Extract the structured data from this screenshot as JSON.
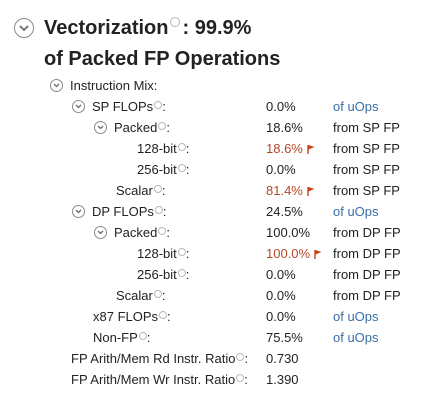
{
  "header": {
    "title": "Vectorization",
    "value": ": 99.9%",
    "subtitle": "of Packed FP Operations"
  },
  "colors": {
    "link": "#3a6ea5",
    "warn": "#b5472b",
    "flag": "#c8441c"
  },
  "icons": {
    "expand_toggle": "chevron-down-in-circle-icon",
    "help": "help-circle-icon",
    "warning": "flag-icon"
  },
  "rows": [
    {
      "label": "Instruction Mix:",
      "value": "",
      "unit": ""
    },
    {
      "label": "SP FLOPs",
      "value": "0.0%",
      "unit": "of uOps"
    },
    {
      "label": "Packed",
      "value": "18.6%",
      "unit": "from SP FP"
    },
    {
      "label": "128-bit",
      "value": "18.6%",
      "unit": "from SP FP"
    },
    {
      "label": "256-bit",
      "value": "0.0%",
      "unit": "from SP FP"
    },
    {
      "label": "Scalar",
      "value": "81.4%",
      "unit": "from SP FP"
    },
    {
      "label": "DP FLOPs",
      "value": "24.5%",
      "unit": "of uOps"
    },
    {
      "label": "Packed",
      "value": "100.0%",
      "unit": "from DP FP"
    },
    {
      "label": "128-bit",
      "value": "100.0%",
      "unit": "from DP FP"
    },
    {
      "label": "256-bit",
      "value": "0.0%",
      "unit": "from DP FP"
    },
    {
      "label": "Scalar",
      "value": "0.0%",
      "unit": "from DP FP"
    },
    {
      "label": "x87 FLOPs",
      "value": "0.0%",
      "unit": "of uOps"
    },
    {
      "label": "Non-FP",
      "value": "75.5%",
      "unit": "of uOps"
    },
    {
      "label": "FP Arith/Mem Rd Instr. Ratio",
      "value": "0.730",
      "unit": ""
    },
    {
      "label": "FP Arith/Mem Wr Instr. Ratio",
      "value": "1.390",
      "unit": ""
    }
  ]
}
